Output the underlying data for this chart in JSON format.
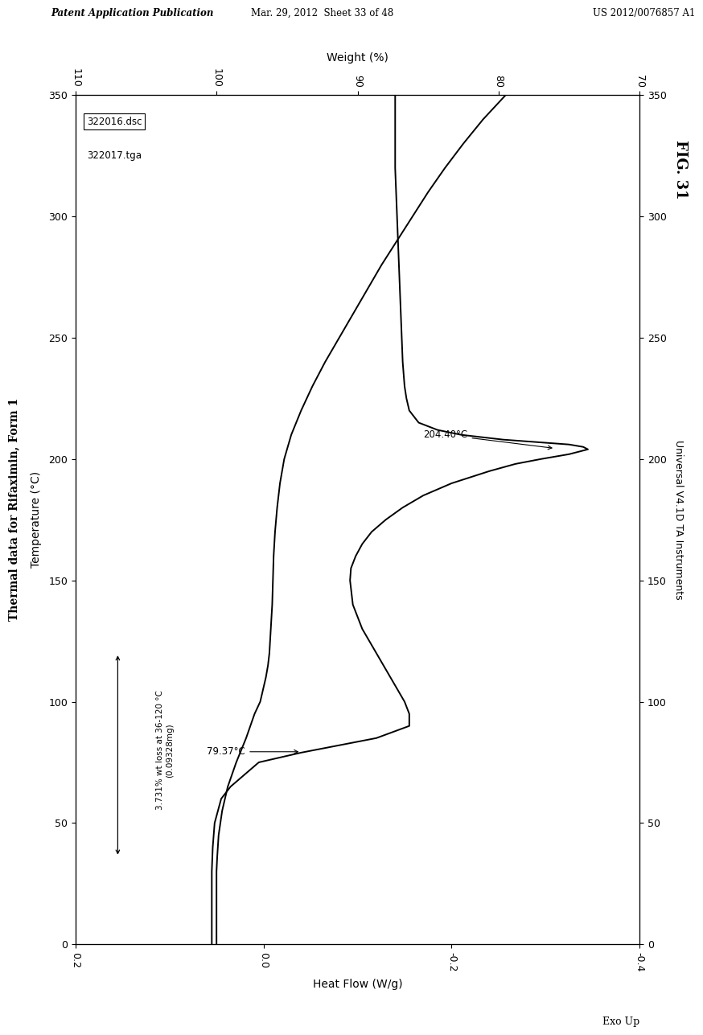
{
  "title": "Thermal data for Rifaximin, Form 1",
  "fig_label": "FIG. 31",
  "patent_header_left": "Patent Application Publication",
  "patent_header_mid": "Mar. 29, 2012  Sheet 33 of 48",
  "patent_header_right": "US 2012/0076857 A1",
  "instrument_label": "Universal V4.1D TA Instruments",
  "xlabel_bottom": "Heat Flow (W/g)",
  "xlabel_top": "Weight (%)",
  "ylabel_right": "Temperature (°C)",
  "exo_label": "Exo Up",
  "legend_entry1": "322016.dsc",
  "legend_entry2": "322017.tga",
  "temp_range": [
    0,
    350
  ],
  "hf_xlim": [
    0.2,
    -0.4
  ],
  "weight_xlim": [
    110,
    70
  ],
  "annotation_temp1": "79.37°C",
  "annotation_temp2": "204.40°C",
  "annotation_wt_loss_line1": "3.731% wt loss at 36-120 °C",
  "annotation_wt_loss_line2": "(0.09328mg)",
  "dsc_temp": [
    0,
    20,
    30,
    40,
    50,
    60,
    65,
    70,
    75,
    79,
    82,
    85,
    90,
    95,
    100,
    110,
    120,
    130,
    140,
    150,
    155,
    160,
    165,
    170,
    175,
    180,
    185,
    190,
    195,
    198,
    200,
    202,
    204,
    205,
    206,
    207,
    208,
    210,
    212,
    215,
    220,
    225,
    230,
    240,
    250,
    260,
    270,
    280,
    290,
    300,
    310,
    320,
    330,
    340,
    350
  ],
  "dsc_hf": [
    0.055,
    0.055,
    0.055,
    0.054,
    0.052,
    0.045,
    0.035,
    0.02,
    0.005,
    -0.04,
    -0.08,
    -0.12,
    -0.155,
    -0.155,
    -0.15,
    -0.135,
    -0.12,
    -0.105,
    -0.095,
    -0.092,
    -0.093,
    -0.098,
    -0.105,
    -0.115,
    -0.13,
    -0.148,
    -0.17,
    -0.2,
    -0.24,
    -0.268,
    -0.295,
    -0.325,
    -0.345,
    -0.34,
    -0.325,
    -0.29,
    -0.255,
    -0.21,
    -0.185,
    -0.165,
    -0.155,
    -0.152,
    -0.15,
    -0.148,
    -0.147,
    -0.146,
    -0.145,
    -0.144,
    -0.143,
    -0.142,
    -0.141,
    -0.14,
    -0.14,
    -0.14,
    -0.14
  ],
  "tga_temp": [
    0,
    20,
    30,
    36,
    45,
    55,
    65,
    75,
    85,
    95,
    100,
    110,
    115,
    120,
    130,
    140,
    150,
    160,
    170,
    180,
    190,
    200,
    210,
    220,
    230,
    240,
    250,
    260,
    270,
    280,
    290,
    300,
    310,
    320,
    330,
    340,
    350
  ],
  "tga_wt": [
    100.0,
    100.0,
    100.0,
    99.95,
    99.85,
    99.6,
    99.2,
    98.6,
    97.9,
    97.3,
    96.9,
    96.5,
    96.35,
    96.25,
    96.15,
    96.05,
    96.0,
    95.95,
    95.85,
    95.7,
    95.5,
    95.2,
    94.7,
    94.0,
    93.2,
    92.3,
    91.3,
    90.3,
    89.3,
    88.3,
    87.2,
    86.1,
    85.0,
    83.8,
    82.5,
    81.1,
    79.5
  ]
}
